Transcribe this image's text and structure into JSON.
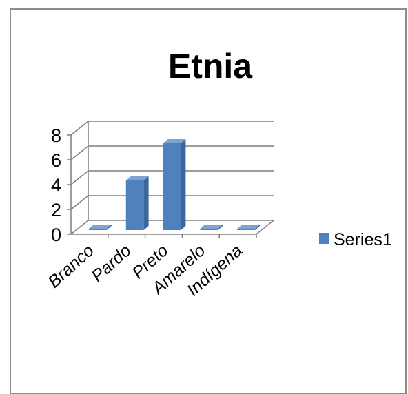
{
  "chart_data": {
    "type": "bar",
    "title": "Etnia",
    "categories": [
      "Branco",
      "Pardo",
      "Preto",
      "Amarelo",
      "Indígena"
    ],
    "series": [
      {
        "name": "Series1",
        "values": [
          0,
          4,
          7,
          0,
          0
        ]
      }
    ],
    "ylim": [
      0,
      8
    ],
    "yticks": [
      0,
      2,
      4,
      6,
      8
    ],
    "grid": true,
    "legend": "right",
    "style": "3d-column",
    "colors": {
      "bar": "#4f81bd",
      "bar_top": "#7da3d6",
      "bar_side": "#3b679d"
    }
  }
}
